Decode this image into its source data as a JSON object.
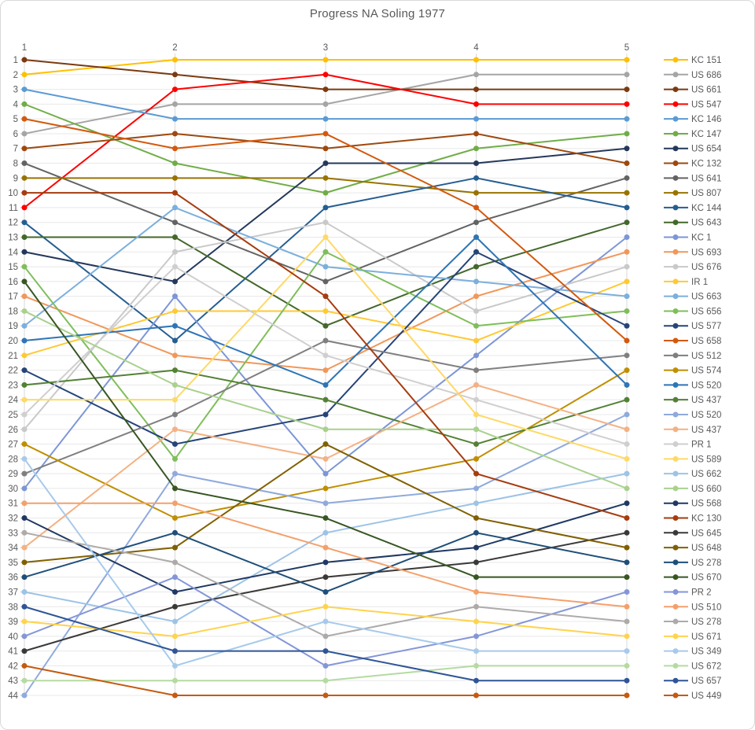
{
  "chart_data": {
    "type": "line",
    "subtype": "bump-chart-rankings",
    "title": "Progress NA Soling 1977",
    "xlabel": "",
    "ylabel": "",
    "x": [
      1,
      2,
      3,
      4,
      5
    ],
    "x_axis_position": "top",
    "y_axis": {
      "kind": "rank",
      "min": 1,
      "max": 44,
      "inverted": true,
      "tick_every": 1
    },
    "grid": true,
    "legend_position": "right",
    "marker": "circle",
    "series": [
      {
        "name": "KC 151",
        "color": "#FFC000",
        "ranks": [
          2,
          1,
          1,
          1,
          1
        ]
      },
      {
        "name": "US 686",
        "color": "#A5A5A5",
        "ranks": [
          6,
          4,
          4,
          2,
          2
        ]
      },
      {
        "name": "US 661",
        "color": "#7B3A10",
        "ranks": [
          1,
          2,
          3,
          3,
          3
        ]
      },
      {
        "name": "US 547",
        "color": "#FF0000",
        "ranks": [
          11,
          3,
          2,
          4,
          4
        ]
      },
      {
        "name": "KC 146",
        "color": "#5B9BD5",
        "ranks": [
          3,
          5,
          5,
          5,
          5
        ]
      },
      {
        "name": "KC 147",
        "color": "#70AD47",
        "ranks": [
          4,
          8,
          10,
          7,
          6
        ]
      },
      {
        "name": "US 654",
        "color": "#24385B",
        "ranks": [
          14,
          16,
          8,
          8,
          7
        ]
      },
      {
        "name": "KC 132",
        "color": "#9E480E",
        "ranks": [
          7,
          6,
          7,
          6,
          8
        ]
      },
      {
        "name": "US 641",
        "color": "#636363",
        "ranks": [
          8,
          12,
          16,
          12,
          9
        ]
      },
      {
        "name": "US 807",
        "color": "#997300",
        "ranks": [
          9,
          9,
          9,
          10,
          10
        ]
      },
      {
        "name": "KC 144",
        "color": "#255E91",
        "ranks": [
          12,
          20,
          11,
          9,
          11
        ]
      },
      {
        "name": "US 643",
        "color": "#43682B",
        "ranks": [
          13,
          13,
          19,
          15,
          12
        ]
      },
      {
        "name": "KC 1",
        "color": "#7C96D6",
        "ranks": [
          30,
          17,
          29,
          21,
          13
        ]
      },
      {
        "name": "US 693",
        "color": "#F1975A",
        "ranks": [
          17,
          21,
          22,
          17,
          14
        ]
      },
      {
        "name": "US 676",
        "color": "#C9C9C9",
        "ranks": [
          26,
          14,
          12,
          18,
          15
        ]
      },
      {
        "name": "IR 1",
        "color": "#FFC933",
        "ranks": [
          21,
          18,
          18,
          20,
          16
        ]
      },
      {
        "name": "US 663",
        "color": "#7CAFDD",
        "ranks": [
          19,
          11,
          15,
          16,
          17
        ]
      },
      {
        "name": "US 656",
        "color": "#7FBE5A",
        "ranks": [
          15,
          28,
          14,
          19,
          18
        ]
      },
      {
        "name": "US 577",
        "color": "#264478",
        "ranks": [
          22,
          27,
          25,
          14,
          19
        ]
      },
      {
        "name": "US 658",
        "color": "#D3590D",
        "ranks": [
          5,
          7,
          6,
          11,
          20
        ]
      },
      {
        "name": "US 512",
        "color": "#7F7F7F",
        "ranks": [
          29,
          25,
          20,
          22,
          21
        ]
      },
      {
        "name": "US 574",
        "color": "#BF8F00",
        "ranks": [
          27,
          32,
          30,
          28,
          22
        ]
      },
      {
        "name": "US 520",
        "color": "#2E75B6",
        "ranks": [
          20,
          19,
          23,
          13,
          23
        ]
      },
      {
        "name": "US 437",
        "color": "#538135",
        "ranks": [
          23,
          22,
          24,
          27,
          24
        ]
      },
      {
        "name": "US 520",
        "color": "#8FAADC",
        "ranks": [
          44,
          29,
          31,
          30,
          25
        ]
      },
      {
        "name": "US 437",
        "color": "#F4B183",
        "ranks": [
          34,
          26,
          28,
          23,
          26
        ]
      },
      {
        "name": "PR 1",
        "color": "#D0CECE",
        "ranks": [
          25,
          15,
          21,
          24,
          27
        ]
      },
      {
        "name": "US 589",
        "color": "#FFD966",
        "ranks": [
          24,
          24,
          13,
          25,
          28
        ]
      },
      {
        "name": "US 662",
        "color": "#9DC3E6",
        "ranks": [
          37,
          39,
          33,
          31,
          29
        ]
      },
      {
        "name": "US 660",
        "color": "#A9D18E",
        "ranks": [
          18,
          23,
          26,
          26,
          30
        ]
      },
      {
        "name": "US 568",
        "color": "#1F3864",
        "ranks": [
          32,
          37,
          35,
          34,
          31
        ]
      },
      {
        "name": "KC 130",
        "color": "#A63C10",
        "ranks": [
          10,
          10,
          17,
          29,
          32
        ]
      },
      {
        "name": "US 645",
        "color": "#3B3838",
        "ranks": [
          41,
          38,
          36,
          35,
          33
        ]
      },
      {
        "name": "US 648",
        "color": "#806000",
        "ranks": [
          35,
          34,
          27,
          32,
          34
        ]
      },
      {
        "name": "US 278",
        "color": "#1F4E79",
        "ranks": [
          36,
          33,
          37,
          33,
          35
        ]
      },
      {
        "name": "US 670",
        "color": "#375623",
        "ranks": [
          16,
          30,
          32,
          36,
          36
        ]
      },
      {
        "name": "PR 2",
        "color": "#8496D8",
        "ranks": [
          40,
          36,
          42,
          40,
          37
        ]
      },
      {
        "name": "US 510",
        "color": "#F4A06B",
        "ranks": [
          31,
          31,
          34,
          37,
          38
        ]
      },
      {
        "name": "US 278",
        "color": "#AEAAAA",
        "ranks": [
          33,
          35,
          40,
          38,
          39
        ]
      },
      {
        "name": "US 671",
        "color": "#FFD34D",
        "ranks": [
          39,
          40,
          38,
          39,
          40
        ]
      },
      {
        "name": "US 349",
        "color": "#A6CAEC",
        "ranks": [
          28,
          42,
          39,
          41,
          41
        ]
      },
      {
        "name": "US 672",
        "color": "#B5DBA0",
        "ranks": [
          43,
          43,
          43,
          42,
          42
        ]
      },
      {
        "name": "US 657",
        "color": "#2F5597",
        "ranks": [
          38,
          41,
          41,
          43,
          43
        ]
      },
      {
        "name": "US 449",
        "color": "#C55A11",
        "ranks": [
          42,
          44,
          44,
          44,
          44
        ]
      }
    ]
  },
  "colors": {
    "title_text": "#595959",
    "axis_text": "#595959",
    "gridline": "#E8E8E8",
    "column_line": "#D9D9D9",
    "tick": "#BFBFBF",
    "background": "#FFFFFF",
    "border": "#D9D9D9"
  }
}
